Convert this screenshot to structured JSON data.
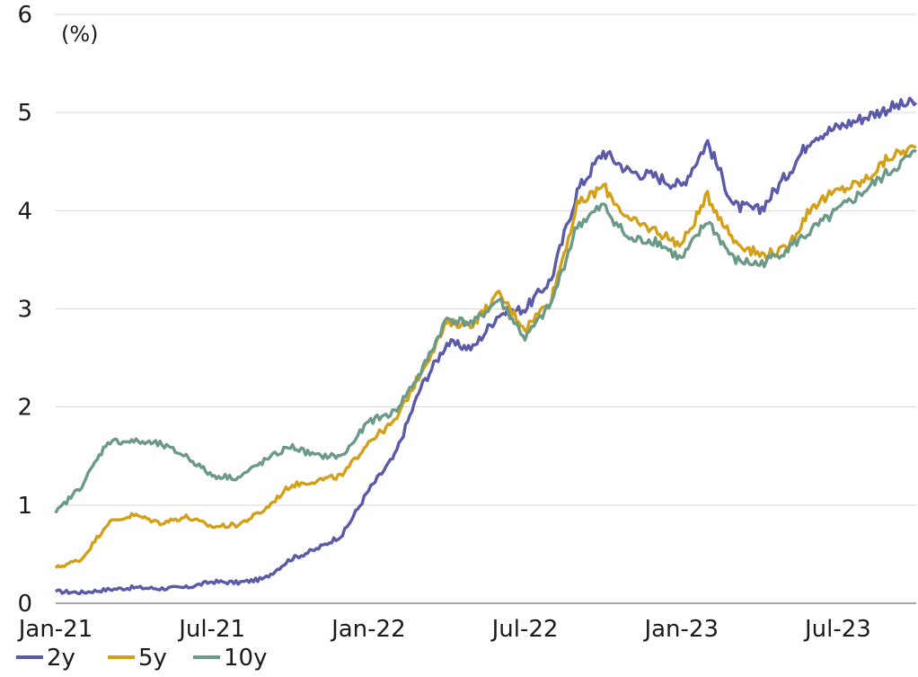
{
  "chart_data": {
    "type": "line",
    "ylabel": "",
    "unit_label": "(%)",
    "ylim": [
      0,
      6
    ],
    "yticks": [
      "0",
      "1",
      "2",
      "3",
      "4",
      "5",
      "6"
    ],
    "xlim": [
      "2021-01",
      "2023-10"
    ],
    "xticks": [
      "Jan-21",
      "Jul-21",
      "Jan-22",
      "Jul-22",
      "Jan-23",
      "Jul-23"
    ],
    "grid": true,
    "legend_position": "bottom-left",
    "series": [
      {
        "name": "2y",
        "color": "#5b5aa8",
        "points": [
          [
            "2021-01",
            0.12
          ],
          [
            "2021-02",
            0.11
          ],
          [
            "2021-03",
            0.14
          ],
          [
            "2021-04",
            0.16
          ],
          [
            "2021-05",
            0.15
          ],
          [
            "2021-06",
            0.16
          ],
          [
            "2021-07",
            0.22
          ],
          [
            "2021-08",
            0.21
          ],
          [
            "2021-09",
            0.25
          ],
          [
            "2021-10",
            0.45
          ],
          [
            "2021-11",
            0.55
          ],
          [
            "2021-12",
            0.7
          ],
          [
            "2022-01",
            1.15
          ],
          [
            "2022-02",
            1.5
          ],
          [
            "2022-03",
            2.2
          ],
          [
            "2022-04",
            2.65
          ],
          [
            "2022-05",
            2.6
          ],
          [
            "2022-06",
            2.95
          ],
          [
            "2022-07",
            3.0
          ],
          [
            "2022-08",
            3.3
          ],
          [
            "2022-09",
            4.2
          ],
          [
            "2022-10",
            4.6
          ],
          [
            "2022-11",
            4.4
          ],
          [
            "2022-12",
            4.35
          ],
          [
            "2023-01",
            4.25
          ],
          [
            "2023-02",
            4.7
          ],
          [
            "2023-03",
            4.05
          ],
          [
            "2023-04",
            4.0
          ],
          [
            "2023-05",
            4.35
          ],
          [
            "2023-06",
            4.75
          ],
          [
            "2023-07",
            4.85
          ],
          [
            "2023-08",
            4.95
          ],
          [
            "2023-09",
            5.05
          ],
          [
            "2023-10",
            5.1
          ]
        ]
      },
      {
        "name": "5y",
        "color": "#d4a017",
        "points": [
          [
            "2021-01",
            0.36
          ],
          [
            "2021-02",
            0.45
          ],
          [
            "2021-03",
            0.82
          ],
          [
            "2021-04",
            0.9
          ],
          [
            "2021-05",
            0.82
          ],
          [
            "2021-06",
            0.88
          ],
          [
            "2021-07",
            0.78
          ],
          [
            "2021-08",
            0.8
          ],
          [
            "2021-09",
            0.95
          ],
          [
            "2021-10",
            1.2
          ],
          [
            "2021-11",
            1.25
          ],
          [
            "2021-12",
            1.3
          ],
          [
            "2022-01",
            1.65
          ],
          [
            "2022-02",
            1.85
          ],
          [
            "2022-03",
            2.35
          ],
          [
            "2022-04",
            2.85
          ],
          [
            "2022-05",
            2.85
          ],
          [
            "2022-06",
            3.15
          ],
          [
            "2022-07",
            2.8
          ],
          [
            "2022-08",
            3.1
          ],
          [
            "2022-09",
            4.05
          ],
          [
            "2022-10",
            4.25
          ],
          [
            "2022-11",
            3.9
          ],
          [
            "2022-12",
            3.8
          ],
          [
            "2023-01",
            3.65
          ],
          [
            "2023-02",
            4.15
          ],
          [
            "2023-03",
            3.7
          ],
          [
            "2023-04",
            3.55
          ],
          [
            "2023-05",
            3.6
          ],
          [
            "2023-06",
            4.05
          ],
          [
            "2023-07",
            4.2
          ],
          [
            "2023-08",
            4.3
          ],
          [
            "2023-09",
            4.55
          ],
          [
            "2023-10",
            4.65
          ]
        ]
      },
      {
        "name": "10y",
        "color": "#6b9a86",
        "points": [
          [
            "2021-01",
            0.92
          ],
          [
            "2021-02",
            1.2
          ],
          [
            "2021-03",
            1.65
          ],
          [
            "2021-04",
            1.65
          ],
          [
            "2021-05",
            1.62
          ],
          [
            "2021-06",
            1.5
          ],
          [
            "2021-07",
            1.3
          ],
          [
            "2021-08",
            1.28
          ],
          [
            "2021-09",
            1.45
          ],
          [
            "2021-10",
            1.6
          ],
          [
            "2021-11",
            1.5
          ],
          [
            "2021-12",
            1.5
          ],
          [
            "2022-01",
            1.85
          ],
          [
            "2022-02",
            1.95
          ],
          [
            "2022-03",
            2.35
          ],
          [
            "2022-04",
            2.9
          ],
          [
            "2022-05",
            2.85
          ],
          [
            "2022-06",
            3.1
          ],
          [
            "2022-07",
            2.7
          ],
          [
            "2022-08",
            3.05
          ],
          [
            "2022-09",
            3.85
          ],
          [
            "2022-10",
            4.05
          ],
          [
            "2022-11",
            3.7
          ],
          [
            "2022-12",
            3.7
          ],
          [
            "2023-01",
            3.5
          ],
          [
            "2023-02",
            3.9
          ],
          [
            "2023-03",
            3.5
          ],
          [
            "2023-04",
            3.45
          ],
          [
            "2023-05",
            3.6
          ],
          [
            "2023-06",
            3.8
          ],
          [
            "2023-07",
            4.0
          ],
          [
            "2023-08",
            4.2
          ],
          [
            "2023-09",
            4.4
          ],
          [
            "2023-10",
            4.6
          ]
        ]
      }
    ]
  }
}
